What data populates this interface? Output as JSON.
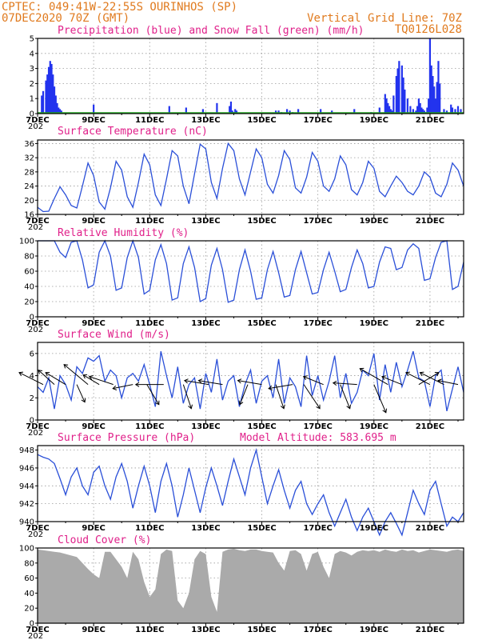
{
  "header": {
    "left_line1": "CPTEC:   049:41W-22:55S   OURINHOS (SP)",
    "left_line2": "07DEC2020 70Z (GMT)",
    "right_line1": "Vertical Grid Line: 70Z",
    "right_line2": "TQ0126L028"
  },
  "x_tick_labels": [
    "7DEC",
    "9DEC",
    "11DEC",
    "13DEC",
    "15DEC",
    "17DEC",
    "19DEC",
    "21DEC"
  ],
  "x_year_stub": "202",
  "colors": {
    "precip": "#2233ee",
    "snow": "#22aa22",
    "line": "#2a4fd8",
    "cloud": "#aaaaaa",
    "title": "#e0208a",
    "header": "#e07a1e"
  },
  "chart_data": [
    {
      "id": "precip",
      "type": "bar",
      "title": "Precipitation (blue) and Snow Fall (green) (mm/h)",
      "ylim": [
        0,
        5
      ],
      "yticks": [
        0,
        1,
        2,
        3,
        4,
        5
      ],
      "x_days": [
        0.15,
        0.2,
        0.3,
        0.35,
        0.4,
        0.45,
        0.5,
        0.55,
        0.6,
        0.65,
        0.7,
        0.75,
        0.8,
        0.85,
        2.0,
        4.7,
        5.3,
        5.9,
        6.4,
        6.85,
        6.9,
        6.95,
        7.0,
        7.05,
        7.1,
        8.5,
        8.6,
        8.7,
        8.9,
        9.0,
        9.1,
        9.3,
        10.1,
        10.5,
        11.3,
        11.9,
        12.2,
        12.4,
        12.45,
        12.5,
        12.55,
        12.6,
        12.65,
        12.7,
        12.8,
        12.85,
        12.9,
        13.0,
        13.05,
        13.1,
        13.2,
        13.3,
        13.4,
        13.5,
        13.55,
        13.6,
        13.65,
        13.7,
        13.75,
        13.8,
        13.85,
        13.9,
        13.95,
        14.0,
        14.05,
        14.1,
        14.15,
        14.2,
        14.25,
        14.3,
        14.35,
        14.5,
        14.6,
        14.75,
        14.8,
        14.9,
        15.0,
        15.1
      ],
      "values": [
        1.2,
        1.5,
        2.2,
        2.6,
        3.1,
        3.5,
        3.3,
        2.6,
        1.8,
        1.2,
        0.7,
        0.4,
        0.3,
        0.2,
        0.6,
        0.5,
        0.4,
        0.3,
        0.7,
        0.5,
        0.8,
        0.2,
        0.1,
        0.3,
        0.2,
        0.2,
        0.2,
        0.1,
        0.3,
        0.2,
        0.1,
        0.3,
        0.3,
        0.2,
        0.3,
        0.1,
        0.4,
        1.3,
        1.0,
        0.7,
        0.5,
        0.3,
        0.2,
        1.2,
        2.5,
        3.0,
        3.5,
        3.2,
        2.4,
        1.6,
        1.0,
        0.5,
        0.3,
        0.2,
        0.5,
        1.0,
        0.7,
        0.4,
        0.3,
        0.2,
        0.1,
        0.4,
        1.0,
        5.0,
        3.2,
        2.5,
        1.8,
        1.0,
        2.1,
        3.5,
        2.0,
        0.3,
        0.2,
        0.6,
        0.4,
        0.3,
        0.5,
        0.3
      ],
      "snow": []
    },
    {
      "id": "temp",
      "type": "line",
      "title": "Surface Temperature (nC)",
      "ylim": [
        16,
        37
      ],
      "yticks": [
        16,
        20,
        24,
        28,
        32,
        36
      ],
      "x_days": [
        0.0,
        0.2,
        0.4,
        0.6,
        0.8,
        1.0,
        1.2,
        1.4,
        1.6,
        1.8,
        2.0,
        2.2,
        2.4,
        2.6,
        2.8,
        3.0,
        3.2,
        3.4,
        3.6,
        3.8,
        4.0,
        4.2,
        4.4,
        4.6,
        4.8,
        5.0,
        5.2,
        5.4,
        5.6,
        5.8,
        6.0,
        6.2,
        6.4,
        6.6,
        6.8,
        7.0,
        7.2,
        7.4,
        7.6,
        7.8,
        8.0,
        8.2,
        8.4,
        8.6,
        8.8,
        9.0,
        9.2,
        9.4,
        9.6,
        9.8,
        10.0,
        10.2,
        10.4,
        10.6,
        10.8,
        11.0,
        11.2,
        11.4,
        11.6,
        11.8,
        12.0,
        12.2,
        12.4,
        12.6,
        12.8,
        13.0,
        13.2,
        13.4,
        13.6,
        13.8,
        14.0,
        14.2,
        14.4,
        14.6,
        14.8,
        15.0,
        15.2
      ],
      "values": [
        18.0,
        16.8,
        16.9,
        20.5,
        23.8,
        21.5,
        18.5,
        17.8,
        24.0,
        30.5,
        27.0,
        19.5,
        17.5,
        23.5,
        31.0,
        28.5,
        21.0,
        18.0,
        25.0,
        33.0,
        30.0,
        21.5,
        18.5,
        26.0,
        34.0,
        32.5,
        24.0,
        19.0,
        27.5,
        35.8,
        34.5,
        25.0,
        20.5,
        29.0,
        36.0,
        34.0,
        26.0,
        21.5,
        28.0,
        34.5,
        32.0,
        24.5,
        22.0,
        27.0,
        34.0,
        31.5,
        23.5,
        22.0,
        26.5,
        33.5,
        31.0,
        24.0,
        22.5,
        26.0,
        32.5,
        30.0,
        23.0,
        21.5,
        25.0,
        31.0,
        29.0,
        22.5,
        21.0,
        24.0,
        26.8,
        25.0,
        22.5,
        21.5,
        24.0,
        28.0,
        26.5,
        22.0,
        21.0,
        24.5,
        30.5,
        28.5,
        24.0
      ]
    },
    {
      "id": "rh",
      "type": "line",
      "title": "Relative Humidity (%)",
      "ylim": [
        0,
        100
      ],
      "yticks": [
        0,
        20,
        40,
        60,
        80,
        100
      ],
      "x_days": [
        0.0,
        0.2,
        0.4,
        0.6,
        0.8,
        1.0,
        1.2,
        1.4,
        1.6,
        1.8,
        2.0,
        2.2,
        2.4,
        2.6,
        2.8,
        3.0,
        3.2,
        3.4,
        3.6,
        3.8,
        4.0,
        4.2,
        4.4,
        4.6,
        4.8,
        5.0,
        5.2,
        5.4,
        5.6,
        5.8,
        6.0,
        6.2,
        6.4,
        6.6,
        6.8,
        7.0,
        7.2,
        7.4,
        7.6,
        7.8,
        8.0,
        8.2,
        8.4,
        8.6,
        8.8,
        9.0,
        9.2,
        9.4,
        9.6,
        9.8,
        10.0,
        10.2,
        10.4,
        10.6,
        10.8,
        11.0,
        11.2,
        11.4,
        11.6,
        11.8,
        12.0,
        12.2,
        12.4,
        12.6,
        12.8,
        13.0,
        13.2,
        13.4,
        13.6,
        13.8,
        14.0,
        14.2,
        14.4,
        14.6,
        14.8,
        15.0,
        15.2
      ],
      "values": [
        100,
        100,
        100,
        100,
        85,
        78,
        98,
        100,
        75,
        38,
        42,
        85,
        100,
        80,
        35,
        38,
        78,
        100,
        78,
        30,
        35,
        75,
        95,
        70,
        22,
        25,
        70,
        92,
        65,
        20,
        24,
        68,
        90,
        62,
        19,
        22,
        62,
        88,
        60,
        23,
        25,
        62,
        86,
        58,
        26,
        28,
        62,
        86,
        58,
        30,
        32,
        62,
        85,
        60,
        33,
        36,
        65,
        88,
        70,
        38,
        40,
        72,
        92,
        90,
        62,
        65,
        88,
        96,
        90,
        48,
        50,
        78,
        98,
        100,
        36,
        40,
        72
      ]
    },
    {
      "id": "wind",
      "type": "line",
      "title": "Surface Wind (m/s)",
      "ylim": [
        0,
        7
      ],
      "yticks": [
        0,
        2,
        4,
        6
      ],
      "x_days": [
        0.0,
        0.2,
        0.4,
        0.6,
        0.8,
        1.0,
        1.2,
        1.4,
        1.6,
        1.8,
        2.0,
        2.2,
        2.4,
        2.6,
        2.8,
        3.0,
        3.2,
        3.4,
        3.6,
        3.8,
        4.0,
        4.2,
        4.4,
        4.6,
        4.8,
        5.0,
        5.2,
        5.4,
        5.6,
        5.8,
        6.0,
        6.2,
        6.4,
        6.6,
        6.8,
        7.0,
        7.2,
        7.4,
        7.6,
        7.8,
        8.0,
        8.2,
        8.4,
        8.6,
        8.8,
        9.0,
        9.2,
        9.4,
        9.6,
        9.8,
        10.0,
        10.2,
        10.4,
        10.6,
        10.8,
        11.0,
        11.2,
        11.4,
        11.6,
        11.8,
        12.0,
        12.2,
        12.4,
        12.6,
        12.8,
        13.0,
        13.2,
        13.4,
        13.6,
        13.8,
        14.0,
        14.2,
        14.4,
        14.6,
        14.8,
        15.0,
        15.2
      ],
      "values": [
        3.0,
        2.5,
        3.8,
        1.0,
        4.0,
        3.2,
        1.8,
        4.8,
        4.2,
        5.6,
        5.3,
        5.8,
        3.5,
        4.5,
        4.0,
        2.0,
        3.8,
        4.2,
        3.5,
        5.0,
        3.2,
        1.2,
        6.2,
        4.0,
        2.0,
        4.8,
        1.5,
        3.2,
        3.8,
        1.0,
        4.2,
        2.5,
        5.5,
        1.8,
        3.5,
        4.0,
        1.2,
        3.2,
        4.5,
        1.5,
        3.5,
        4.0,
        2.0,
        5.5,
        1.5,
        3.8,
        3.0,
        1.2,
        5.8,
        2.2,
        4.0,
        1.8,
        3.5,
        5.8,
        2.0,
        4.2,
        1.5,
        2.5,
        4.5,
        4.0,
        6.0,
        1.8,
        5.0,
        2.5,
        5.2,
        3.0,
        4.5,
        6.2,
        3.8,
        3.5,
        1.2,
        4.0,
        4.5,
        0.8,
        2.8,
        4.8,
        2.5
      ],
      "vector_x_days": [
        0.2,
        0.6,
        1.0,
        1.4,
        1.8,
        2.2,
        2.7,
        3.4,
        3.9,
        4.5,
        5.2,
        6.1,
        6.6,
        7.5,
        8.0,
        8.5,
        9.1,
        9.5,
        10.2,
        10.8,
        11.4,
        12.0,
        12.5,
        13.0,
        13.6,
        14.0,
        14.5,
        15.0
      ],
      "vector_u_v": [
        [
          -3.0,
          1.5
        ],
        [
          -2.0,
          1.8
        ],
        [
          -2.5,
          1.5
        ],
        [
          1.0,
          -2.2
        ],
        [
          -3.0,
          2.5
        ],
        [
          -2.0,
          1.2
        ],
        [
          -3.0,
          1.0
        ],
        [
          -2.5,
          -0.5
        ],
        [
          1.5,
          -2.5
        ],
        [
          -3.5,
          0.0
        ],
        [
          1.0,
          -3.0
        ],
        [
          -3.0,
          0.5
        ],
        [
          -3.0,
          0.5
        ],
        [
          -1.0,
          -2.5
        ],
        [
          -3.0,
          0.5
        ],
        [
          1.0,
          -3.0
        ],
        [
          -3.0,
          -0.5
        ],
        [
          2.0,
          -3.0
        ],
        [
          -2.5,
          1.0
        ],
        [
          1.2,
          -3.0
        ],
        [
          -3.0,
          0.2
        ],
        [
          1.5,
          -3.5
        ],
        [
          -3.5,
          2.0
        ],
        [
          -2.5,
          1.0
        ],
        [
          2.5,
          1.5
        ],
        [
          -3.0,
          1.5
        ],
        [
          -3.0,
          1.5
        ],
        [
          -2.5,
          0.5
        ]
      ]
    },
    {
      "id": "pres",
      "type": "line",
      "title": "Surface Pressure (hPa)",
      "extra_label": "Model Altitude: 583.695 m",
      "ylim": [
        940,
        948.5
      ],
      "yticks": [
        940,
        942,
        944,
        946,
        948
      ],
      "x_days": [
        0.0,
        0.2,
        0.4,
        0.6,
        0.8,
        1.0,
        1.2,
        1.4,
        1.6,
        1.8,
        2.0,
        2.2,
        2.4,
        2.6,
        2.8,
        3.0,
        3.2,
        3.4,
        3.6,
        3.8,
        4.0,
        4.2,
        4.4,
        4.6,
        4.8,
        5.0,
        5.2,
        5.4,
        5.6,
        5.8,
        6.0,
        6.2,
        6.4,
        6.6,
        6.8,
        7.0,
        7.2,
        7.4,
        7.6,
        7.8,
        8.0,
        8.2,
        8.4,
        8.6,
        8.8,
        9.0,
        9.2,
        9.4,
        9.6,
        9.8,
        10.0,
        10.2,
        10.4,
        10.6,
        10.8,
        11.0,
        11.2,
        11.4,
        11.6,
        11.8,
        12.0,
        12.2,
        12.4,
        12.6,
        12.8,
        13.0,
        13.2,
        13.4,
        13.6,
        13.8,
        14.0,
        14.2,
        14.4,
        14.6,
        14.8,
        15.0,
        15.2
      ],
      "values": [
        947.5,
        947.2,
        947.0,
        946.5,
        944.8,
        943.0,
        945.0,
        946.0,
        944.0,
        943.0,
        945.5,
        946.2,
        944.0,
        942.5,
        945.0,
        946.5,
        944.5,
        941.5,
        944.0,
        946.2,
        944.0,
        941.0,
        944.5,
        946.5,
        944.0,
        940.5,
        943.0,
        946.0,
        943.5,
        941.0,
        943.8,
        946.0,
        944.0,
        941.8,
        944.5,
        947.0,
        945.0,
        943.0,
        946.0,
        948.0,
        945.0,
        942.0,
        944.0,
        945.8,
        943.5,
        941.5,
        943.5,
        944.5,
        942.0,
        940.8,
        942.0,
        943.0,
        941.0,
        939.5,
        941.0,
        942.5,
        940.5,
        939.0,
        940.5,
        941.5,
        940.0,
        938.5,
        940.0,
        941.0,
        939.8,
        938.5,
        941.0,
        943.5,
        942.0,
        940.8,
        943.5,
        944.5,
        942.0,
        939.5,
        940.5,
        940.0,
        941.0
      ]
    },
    {
      "id": "cloud",
      "type": "area",
      "title": "Cloud Cover (%)",
      "ylim": [
        0,
        100
      ],
      "yticks": [
        0,
        20,
        40,
        60,
        80,
        100
      ],
      "x_days": [
        0.0,
        0.2,
        0.4,
        0.6,
        0.8,
        1.0,
        1.2,
        1.4,
        1.6,
        1.8,
        2.0,
        2.2,
        2.4,
        2.6,
        2.8,
        3.0,
        3.2,
        3.4,
        3.6,
        3.8,
        4.0,
        4.2,
        4.4,
        4.6,
        4.8,
        5.0,
        5.2,
        5.4,
        5.6,
        5.8,
        6.0,
        6.2,
        6.4,
        6.6,
        6.8,
        7.0,
        7.2,
        7.4,
        7.6,
        7.8,
        8.0,
        8.2,
        8.4,
        8.6,
        8.8,
        9.0,
        9.2,
        9.4,
        9.6,
        9.8,
        10.0,
        10.2,
        10.4,
        10.6,
        10.8,
        11.0,
        11.2,
        11.4,
        11.6,
        11.8,
        12.0,
        12.2,
        12.4,
        12.6,
        12.8,
        13.0,
        13.2,
        13.4,
        13.6,
        13.8,
        14.0,
        14.2,
        14.4,
        14.6,
        14.8,
        15.0,
        15.2
      ],
      "values": [
        98,
        97,
        96,
        95,
        94,
        92,
        90,
        88,
        80,
        72,
        65,
        60,
        95,
        95,
        85,
        75,
        60,
        95,
        85,
        55,
        35,
        45,
        92,
        98,
        96,
        30,
        20,
        40,
        85,
        96,
        92,
        35,
        15,
        95,
        98,
        99,
        97,
        96,
        98,
        98,
        96,
        95,
        94,
        80,
        70,
        96,
        97,
        92,
        70,
        92,
        95,
        75,
        60,
        92,
        96,
        94,
        90,
        95,
        97,
        96,
        97,
        95,
        98,
        96,
        95,
        98,
        96,
        97,
        94,
        96,
        98,
        97,
        96,
        95,
        97,
        98,
        96
      ]
    }
  ]
}
